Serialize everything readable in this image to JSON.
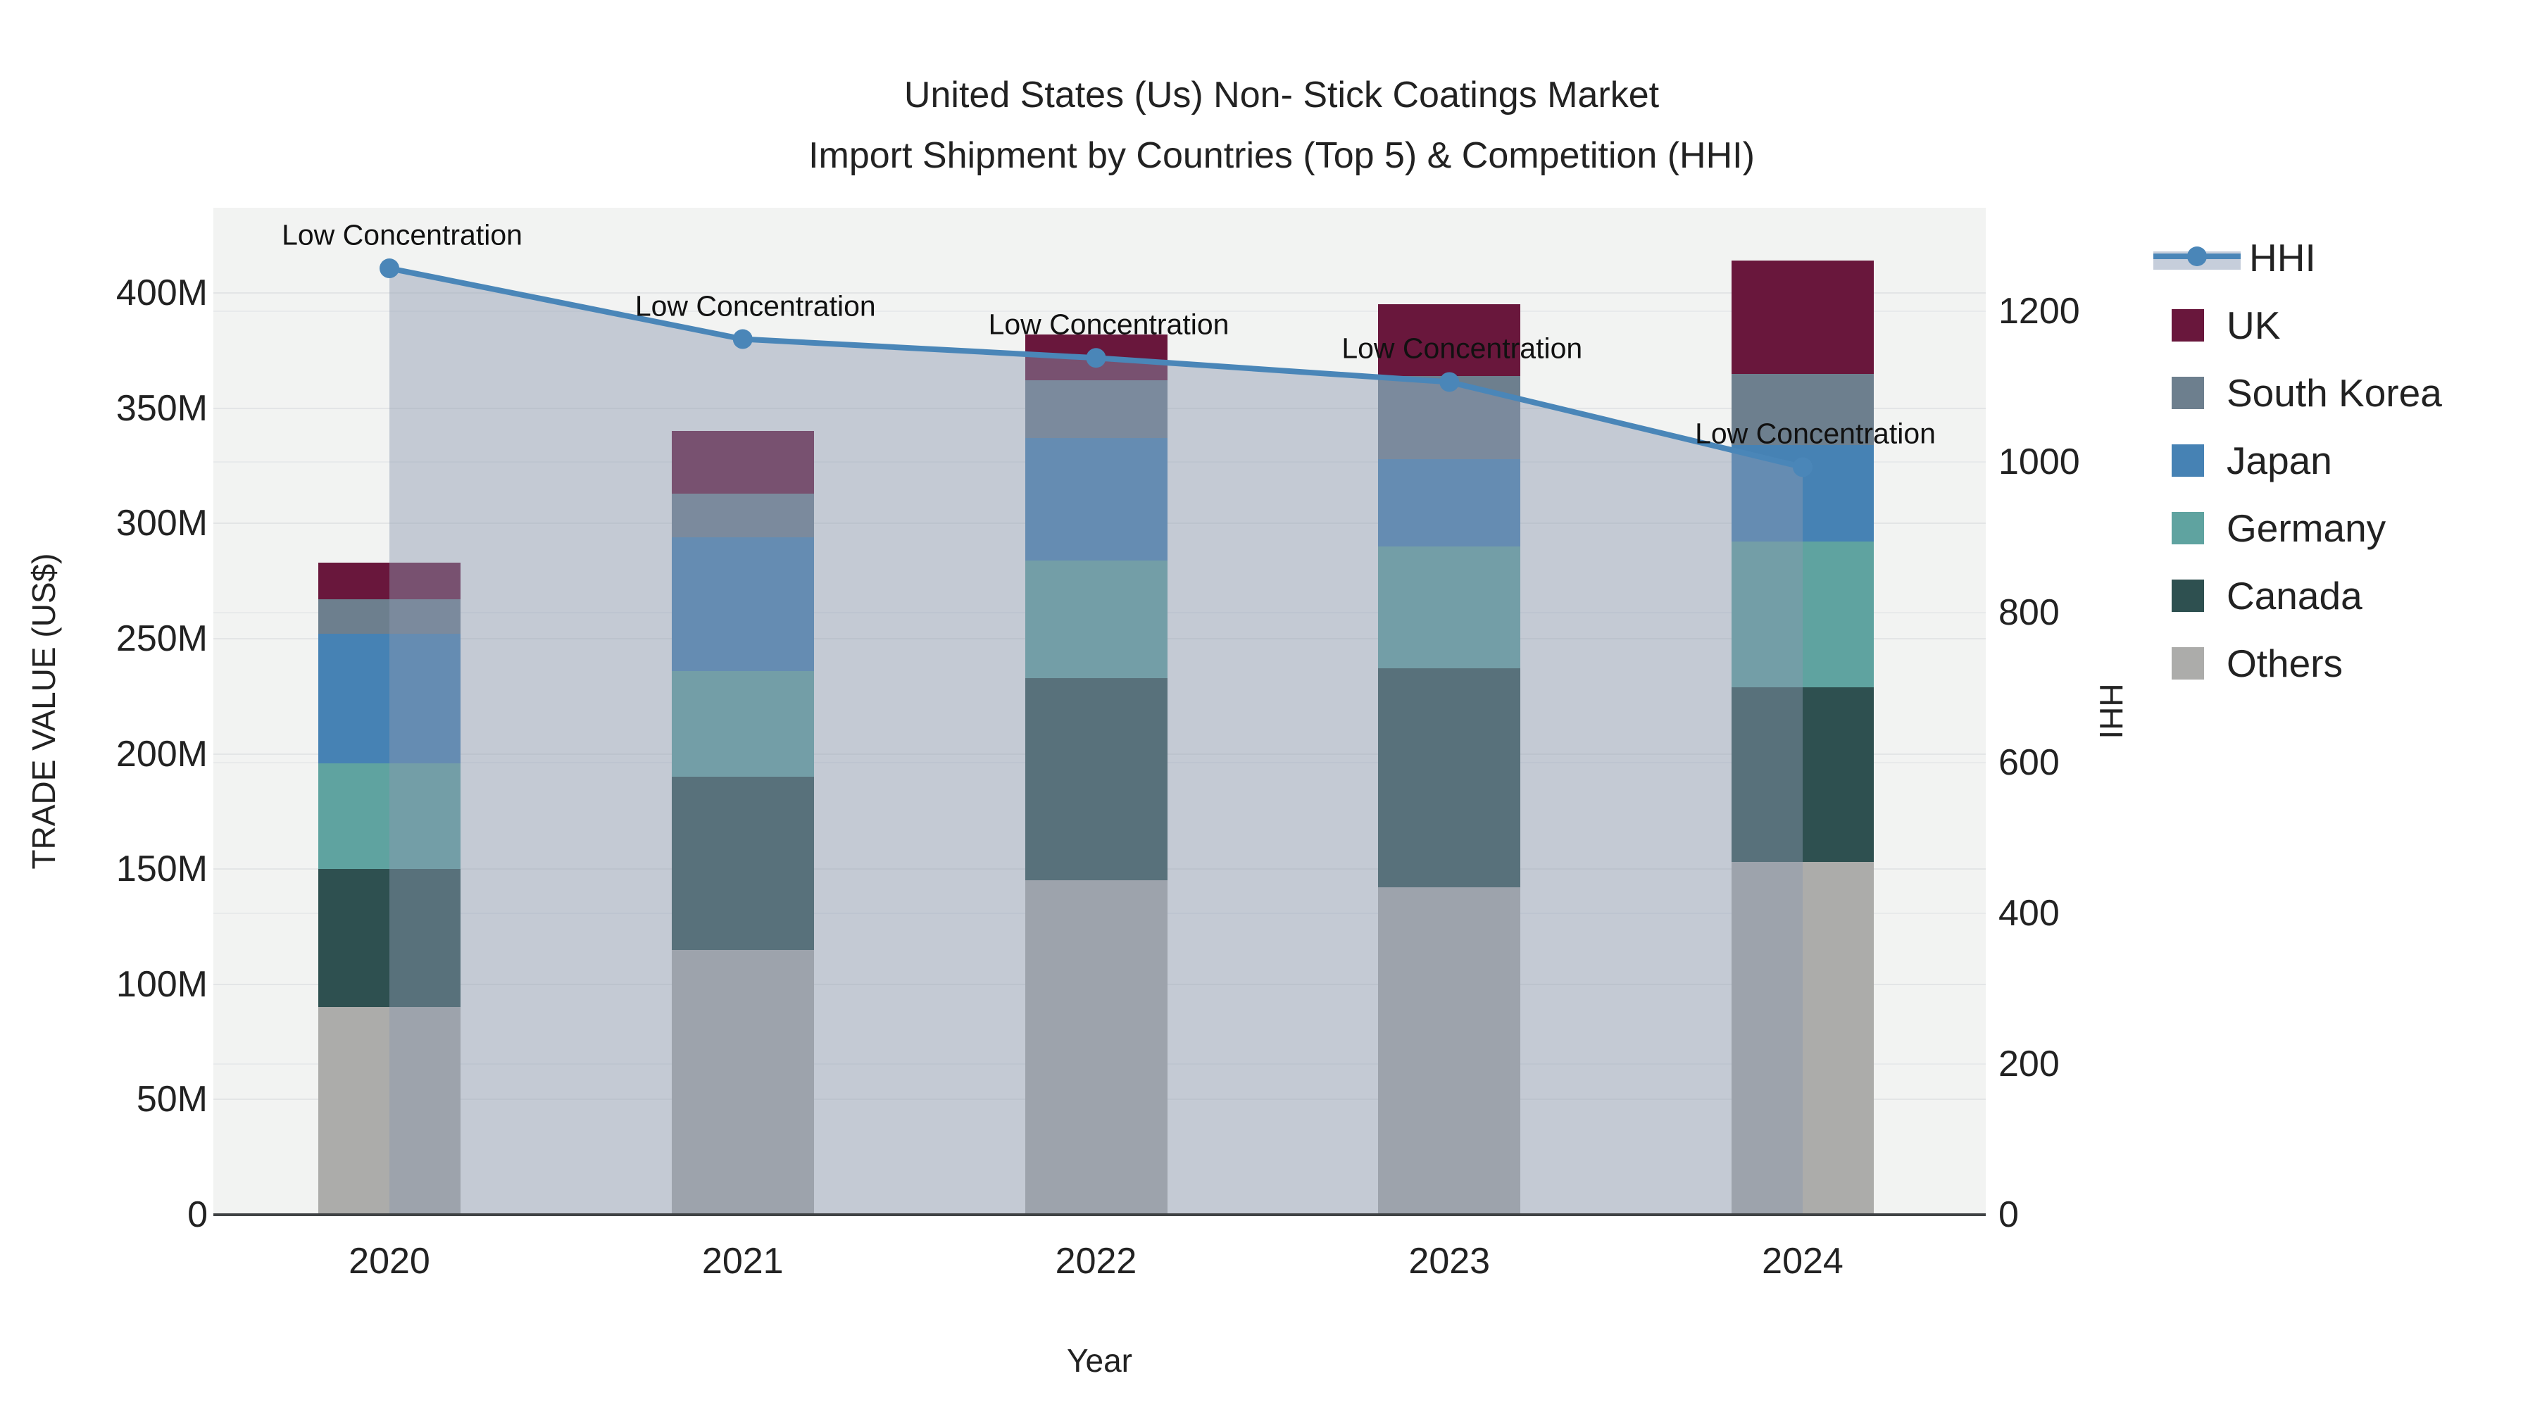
{
  "title": {
    "line1": "United States (Us) Non- Stick Coatings Market",
    "line2": "Import Shipment by Countries (Top 5) & Competition (HHI)"
  },
  "axes": {
    "y_left_title": "TRADE VALUE (US$)",
    "y_right_title": "HHI",
    "x_title": "Year",
    "y_left_ticks": [
      "0",
      "50M",
      "100M",
      "150M",
      "200M",
      "250M",
      "300M",
      "350M",
      "400M"
    ],
    "y_left_tick_values": [
      0,
      50,
      100,
      150,
      200,
      250,
      300,
      350,
      400
    ],
    "y_right_ticks": [
      "0",
      "200",
      "400",
      "600",
      "800",
      "1000",
      "1200"
    ],
    "y_right_tick_values": [
      0,
      200,
      400,
      600,
      800,
      1000,
      1200
    ]
  },
  "chart_data": {
    "type": "combo_stacked_bar_line",
    "categories": [
      "2020",
      "2021",
      "2022",
      "2023",
      "2024"
    ],
    "xlabel": "Year",
    "ylabel_left": "TRADE VALUE (US$)",
    "ylabel_right": "HHI",
    "ylim_left_M": [
      0,
      437
    ],
    "ylim_right": [
      0,
      1337
    ],
    "grid": true,
    "legend_position": "right",
    "series": [
      {
        "name": "Others",
        "color": "#acacaa",
        "values": [
          90,
          115,
          145,
          142,
          153
        ]
      },
      {
        "name": "Canada",
        "color": "#2e5050",
        "values": [
          60,
          75,
          88,
          95,
          76
        ]
      },
      {
        "name": "Germany",
        "color": "#5fa3a0",
        "values": [
          46,
          46,
          51,
          53,
          63
        ]
      },
      {
        "name": "Japan",
        "color": "#4682b4",
        "values": [
          56,
          58,
          53,
          38,
          42
        ]
      },
      {
        "name": "South Korea",
        "color": "#6d7f8e",
        "values": [
          15,
          19,
          25,
          36,
          31
        ]
      },
      {
        "name": "UK",
        "color": "#69173c",
        "values": [
          16,
          27,
          20,
          31,
          49
        ]
      }
    ],
    "bar_totals_M": [
      283,
      340,
      382,
      395,
      414
    ],
    "hhi": {
      "name": "HHI",
      "line_color": "#4a86b8",
      "fill_color": "rgba(140,152,176,0.45)",
      "values": [
        1257,
        1163,
        1138,
        1106,
        993
      ],
      "annotations": [
        "Low Concentration",
        "Low Concentration",
        "Low Concentration",
        "Low Concentration",
        "Low Concentration"
      ]
    }
  },
  "legend": {
    "items": [
      {
        "label": "HHI",
        "type": "line",
        "color": "#4a86b8",
        "band": "#c6cedb"
      },
      {
        "label": "UK",
        "type": "swatch",
        "color": "#69173c"
      },
      {
        "label": "South Korea",
        "type": "swatch",
        "color": "#6d7f8e"
      },
      {
        "label": "Japan",
        "type": "swatch",
        "color": "#4682b4"
      },
      {
        "label": "Germany",
        "type": "swatch",
        "color": "#5fa3a0"
      },
      {
        "label": "Canada",
        "type": "swatch",
        "color": "#2e5050"
      },
      {
        "label": "Others",
        "type": "swatch",
        "color": "#acacaa"
      }
    ]
  },
  "colors": {
    "plot_bg": "#f2f3f2",
    "grid": "#e3e5e6",
    "axis_line": "#3f4244",
    "text": "#222222"
  }
}
